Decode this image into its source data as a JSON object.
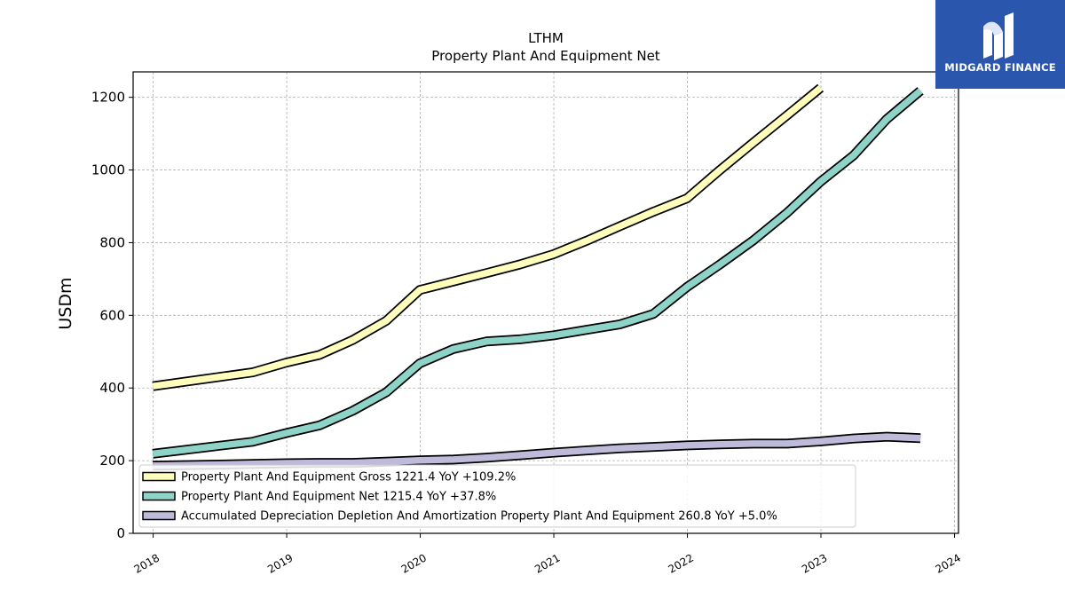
{
  "chart_data": {
    "type": "line",
    "title": "LTHM",
    "subtitle": "Property Plant And Equipment Net",
    "ylabel": "USDm",
    "xlabel": "",
    "ylim": [
      0,
      1270
    ],
    "xlim": [
      2017.85,
      2024.03
    ],
    "yticks": [
      0,
      200,
      400,
      600,
      800,
      1000,
      1200
    ],
    "xticks": [
      "2018",
      "2019",
      "2020",
      "2021",
      "2022",
      "2023",
      "2024"
    ],
    "grid": true,
    "legend_position": "lower-left",
    "series": [
      {
        "name": "Property Plant And Equipment Gross",
        "legend_label": "Property Plant And Equipment Gross  1221.4 YoY +109.2%",
        "color": "#ffffbb",
        "x": [
          "2017-12-31",
          "2018-09-30",
          "2018-12-31",
          "2019-03-31",
          "2019-06-30",
          "2019-09-30",
          "2019-12-31",
          "2020-03-31",
          "2020-06-30",
          "2020-09-30",
          "2020-12-31",
          "2021-03-31",
          "2021-06-30",
          "2021-09-30",
          "2021-12-31",
          "2022-03-31",
          "2022-06-30",
          "2022-09-30",
          "2022-12-31"
        ],
        "values": [
          405,
          443,
          470,
          491,
          532,
          585,
          670,
          693,
          716,
          740,
          768,
          805,
          845,
          885,
          922,
          1000,
          1075,
          1150,
          1226
        ]
      },
      {
        "name": "Property Plant And Equipment Net",
        "legend_label": "Property Plant And Equipment Net  1215.4 YoY +37.8%",
        "color": "#8dd3c7",
        "x": [
          "2017-12-31",
          "2018-09-30",
          "2018-12-31",
          "2019-03-31",
          "2019-06-30",
          "2019-09-30",
          "2019-12-31",
          "2020-03-31",
          "2020-06-30",
          "2020-09-30",
          "2020-12-31",
          "2021-03-31",
          "2021-06-30",
          "2021-09-30",
          "2021-12-31",
          "2022-03-31",
          "2022-06-30",
          "2022-09-30",
          "2022-12-31",
          "2023-03-31",
          "2023-06-30",
          "2023-09-30"
        ],
        "values": [
          219,
          252,
          276,
          297,
          337,
          388,
          468,
          507,
          528,
          534,
          545,
          560,
          575,
          604,
          678,
          740,
          806,
          882,
          968,
          1040,
          1140,
          1218
        ]
      },
      {
        "name": "Accumulated Depreciation Depletion And Amortization Property Plant And Equipment",
        "legend_label": "Accumulated Depreciation Depletion And Amortization Property Plant And Equipment  260.8 YoY +5.0%",
        "color": "#bebada",
        "x": [
          "2017-12-31",
          "2018-09-30",
          "2018-12-31",
          "2019-03-31",
          "2019-06-30",
          "2019-09-30",
          "2019-12-31",
          "2020-03-31",
          "2020-06-30",
          "2020-09-30",
          "2020-12-31",
          "2021-03-31",
          "2021-06-30",
          "2021-09-30",
          "2021-12-31",
          "2022-03-31",
          "2022-06-30",
          "2022-09-30",
          "2022-12-31",
          "2023-03-31",
          "2023-06-30",
          "2023-09-30"
        ],
        "values": [
          186,
          191,
          193,
          194,
          194,
          197,
          201,
          203,
          208,
          215,
          222,
          228,
          234,
          238,
          242,
          245,
          247,
          247,
          253,
          261,
          266,
          262
        ]
      }
    ]
  },
  "brand": {
    "name": "MIDGARD FINANCE",
    "color": "#2a56ad",
    "icon": "midgard-logo-icon"
  }
}
